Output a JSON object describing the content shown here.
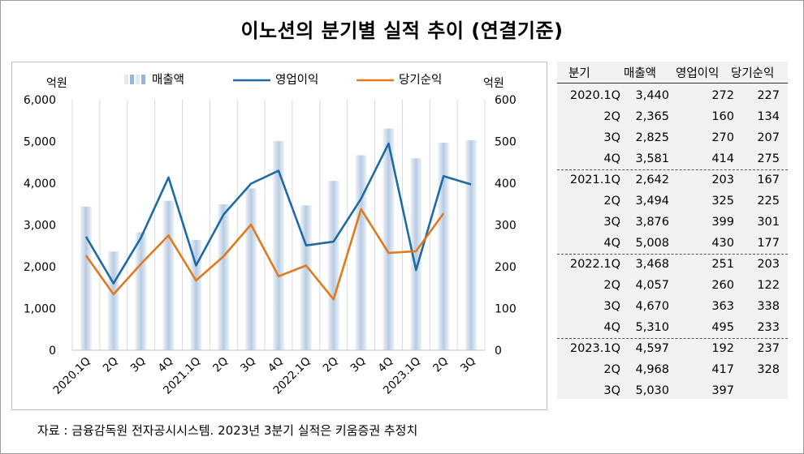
{
  "title": "이노션의 분기별 실적 추이 (연결기준)",
  "footnote": "자료 : 금융감독원 전자공시시스템. 2023년 3분기 실적은 키움증권 추정치",
  "colors": {
    "bar_light": "#dfe8f3",
    "bar_dark": "#9bb5d4",
    "op_line": "#1f6aa5",
    "net_line": "#e07a1f",
    "grid": "#d9d9d9",
    "table_bg": "#f2f2f2"
  },
  "chart_data": {
    "type": "bar",
    "left_axis_unit": "억원",
    "right_axis_unit": "억원",
    "categories": [
      "2020.1Q",
      "2Q",
      "3Q",
      "4Q",
      "2021.1Q",
      "2Q",
      "3Q",
      "4Q",
      "2022.1Q",
      "2Q",
      "3Q",
      "4Q",
      "2023.1Q",
      "2Q",
      "3Q"
    ],
    "left_ylim": [
      0,
      6000
    ],
    "left_ticks": [
      "0",
      "1,000",
      "2,000",
      "3,000",
      "4,000",
      "5,000",
      "6,000"
    ],
    "right_ylim": [
      0,
      600
    ],
    "right_ticks": [
      "0",
      "100",
      "200",
      "300",
      "400",
      "500",
      "600"
    ],
    "grid": "vertical",
    "legend_position": "top",
    "series": [
      {
        "name": "매출액",
        "type": "bar",
        "axis": "left",
        "values": [
          3440,
          2365,
          2825,
          3581,
          2642,
          3494,
          3876,
          5008,
          3468,
          4057,
          4670,
          5310,
          4597,
          4968,
          5030
        ]
      },
      {
        "name": "영업이익",
        "type": "line",
        "axis": "right",
        "values": [
          272,
          160,
          270,
          414,
          203,
          325,
          399,
          430,
          251,
          260,
          363,
          495,
          192,
          417,
          397
        ]
      },
      {
        "name": "당기순익",
        "type": "line",
        "axis": "right",
        "values": [
          227,
          134,
          207,
          275,
          167,
          225,
          301,
          177,
          203,
          122,
          338,
          233,
          237,
          328,
          null
        ]
      }
    ]
  },
  "table": {
    "headers": [
      "분기",
      "매출액",
      "영업이익",
      "당기순익"
    ],
    "rows": [
      [
        "2020.1Q",
        "3,440",
        "272",
        "227"
      ],
      [
        "2Q",
        "2,365",
        "160",
        "134"
      ],
      [
        "3Q",
        "2,825",
        "270",
        "207"
      ],
      [
        "4Q",
        "3,581",
        "414",
        "275"
      ],
      [
        "2021.1Q",
        "2,642",
        "203",
        "167"
      ],
      [
        "2Q",
        "3,494",
        "325",
        "225"
      ],
      [
        "3Q",
        "3,876",
        "399",
        "301"
      ],
      [
        "4Q",
        "5,008",
        "430",
        "177"
      ],
      [
        "2022.1Q",
        "3,468",
        "251",
        "203"
      ],
      [
        "2Q",
        "4,057",
        "260",
        "122"
      ],
      [
        "3Q",
        "4,670",
        "363",
        "338"
      ],
      [
        "4Q",
        "5,310",
        "495",
        "233"
      ],
      [
        "2023.1Q",
        "4,597",
        "192",
        "237"
      ],
      [
        "2Q",
        "4,968",
        "417",
        "328"
      ],
      [
        "3Q",
        "5,030",
        "397",
        ""
      ]
    ]
  }
}
